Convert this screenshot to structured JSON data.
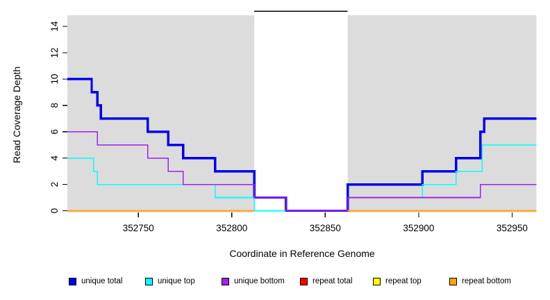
{
  "chart_data": {
    "type": "line",
    "subtype": "step",
    "title": "",
    "xlabel": "Coordinate in Reference Genome",
    "ylabel": "Read Coverage Depth",
    "x_range": [
      352712,
      352963
    ],
    "ylim": [
      0,
      15
    ],
    "x_ticks": [
      352750,
      352800,
      352850,
      352900,
      352950
    ],
    "x_tick_labels": [
      "352750",
      "352800",
      "352850",
      "352900",
      "352950"
    ],
    "y_ticks": [
      0,
      2,
      4,
      6,
      8,
      10,
      12,
      14
    ],
    "y_tick_labels": [
      "0",
      "2",
      "4",
      "6",
      "8",
      "10",
      "12",
      "14"
    ],
    "grid": false,
    "plot_background_color": "#DCDCDC",
    "repeat_region_band": {
      "x": [
        352812,
        352862
      ],
      "color": "#FFFFFF"
    },
    "repeat_region_marker": {
      "x": [
        352812,
        352862
      ],
      "y": 15.0,
      "color": "#000000"
    },
    "series": [
      {
        "name": "unique total",
        "color": "#0000EE",
        "width": 3.4,
        "steps": [
          [
            352712,
            10
          ],
          [
            352725,
            9
          ],
          [
            352728,
            8
          ],
          [
            352730,
            7
          ],
          [
            352755,
            6
          ],
          [
            352766,
            5
          ],
          [
            352774,
            4
          ],
          [
            352791,
            3
          ],
          [
            352812,
            1
          ],
          [
            352829,
            0
          ],
          [
            352862,
            2
          ],
          [
            352902,
            3
          ],
          [
            352920,
            4
          ],
          [
            352933,
            6
          ],
          [
            352935,
            7
          ]
        ],
        "end_x": 352963
      },
      {
        "name": "unique top",
        "color": "#00FFFF",
        "width": 1.6,
        "steps": [
          [
            352712,
            4
          ],
          [
            352726,
            3
          ],
          [
            352728,
            2
          ],
          [
            352791,
            1
          ],
          [
            352812,
            0
          ],
          [
            352862,
            1
          ],
          [
            352902,
            2
          ],
          [
            352920,
            3
          ],
          [
            352934,
            5
          ]
        ],
        "end_x": 352963
      },
      {
        "name": "unique bottom",
        "color": "#A020F0",
        "width": 1.6,
        "steps": [
          [
            352712,
            6
          ],
          [
            352728,
            5
          ],
          [
            352755,
            4
          ],
          [
            352766,
            3
          ],
          [
            352774,
            2
          ],
          [
            352812,
            1
          ],
          [
            352829,
            0
          ],
          [
            352862,
            1
          ],
          [
            352933,
            2
          ]
        ],
        "end_x": 352963
      },
      {
        "name": "repeat total",
        "color": "#FF0000",
        "width": 1.6,
        "segments": [
          {
            "x": [
              352712,
              352812
            ],
            "y": 0
          },
          {
            "x": [
              352862,
              352963
            ],
            "y": 0
          }
        ]
      },
      {
        "name": "repeat top",
        "color": "#FFFF00",
        "width": 1.6,
        "segments": [
          {
            "x": [
              352712,
              352812
            ],
            "y": 0
          },
          {
            "x": [
              352862,
              352963
            ],
            "y": 0
          }
        ]
      },
      {
        "name": "repeat bottom",
        "color": "#FFA500",
        "width": 2.0,
        "segments": [
          {
            "x": [
              352712,
              352812
            ],
            "y": 0
          },
          {
            "x": [
              352862,
              352963
            ],
            "y": 0
          }
        ]
      }
    ],
    "legend": {
      "position": "bottom",
      "items": [
        {
          "label": "unique total",
          "color": "#0000EE"
        },
        {
          "label": "unique top",
          "color": "#00FFFF"
        },
        {
          "label": "unique bottom",
          "color": "#A020F0"
        },
        {
          "label": "repeat total",
          "color": "#FF0000"
        },
        {
          "label": "repeat top",
          "color": "#FFFF00"
        },
        {
          "label": "repeat bottom",
          "color": "#FFA500"
        }
      ]
    }
  }
}
